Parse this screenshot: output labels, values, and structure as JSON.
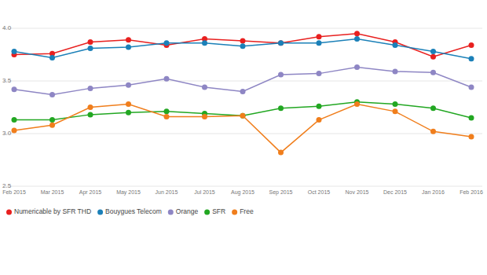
{
  "chart_data": {
    "type": "line",
    "categories": [
      "Feb 2015",
      "Mar 2015",
      "Apr 2015",
      "May 2015",
      "Jun 2015",
      "Jul 2015",
      "Aug 2015",
      "Sep 2015",
      "Oct 2015",
      "Nov 2015",
      "Dec 2015",
      "Jan 2016",
      "Feb 2016"
    ],
    "series": [
      {
        "name": "Numericable by SFR THD",
        "color": "#e8201f",
        "values": [
          3.75,
          3.76,
          3.87,
          3.89,
          3.84,
          3.9,
          3.88,
          3.86,
          3.92,
          3.95,
          3.87,
          3.73,
          3.84
        ]
      },
      {
        "name": "Bouygues Telecom",
        "color": "#1b80b8",
        "values": [
          3.78,
          3.72,
          3.81,
          3.82,
          3.86,
          3.86,
          3.83,
          3.86,
          3.86,
          3.9,
          3.84,
          3.78,
          3.71
        ]
      },
      {
        "name": "Orange",
        "color": "#8e86c4",
        "values": [
          3.42,
          3.37,
          3.43,
          3.46,
          3.52,
          3.44,
          3.4,
          3.56,
          3.57,
          3.63,
          3.59,
          3.58,
          3.44
        ]
      },
      {
        "name": "SFR",
        "color": "#22a722",
        "values": [
          3.13,
          3.13,
          3.18,
          3.2,
          3.21,
          3.19,
          3.17,
          3.24,
          3.26,
          3.3,
          3.28,
          3.24,
          3.15
        ]
      },
      {
        "name": "Free",
        "color": "#f07e1c",
        "values": [
          3.03,
          3.08,
          3.25,
          3.28,
          3.16,
          3.16,
          3.17,
          2.82,
          3.13,
          3.28,
          3.21,
          3.02,
          2.97
        ]
      }
    ],
    "ylim": [
      2.5,
      4.0
    ],
    "yticks": [
      {
        "value": 2.5,
        "label": "2.5"
      },
      {
        "value": 3,
        "label": "3.0"
      },
      {
        "value": 3.5,
        "label": "3.5"
      },
      {
        "value": 4,
        "label": "4.0"
      }
    ],
    "grid": true,
    "legend": "bottom-left",
    "marker": "circle"
  }
}
